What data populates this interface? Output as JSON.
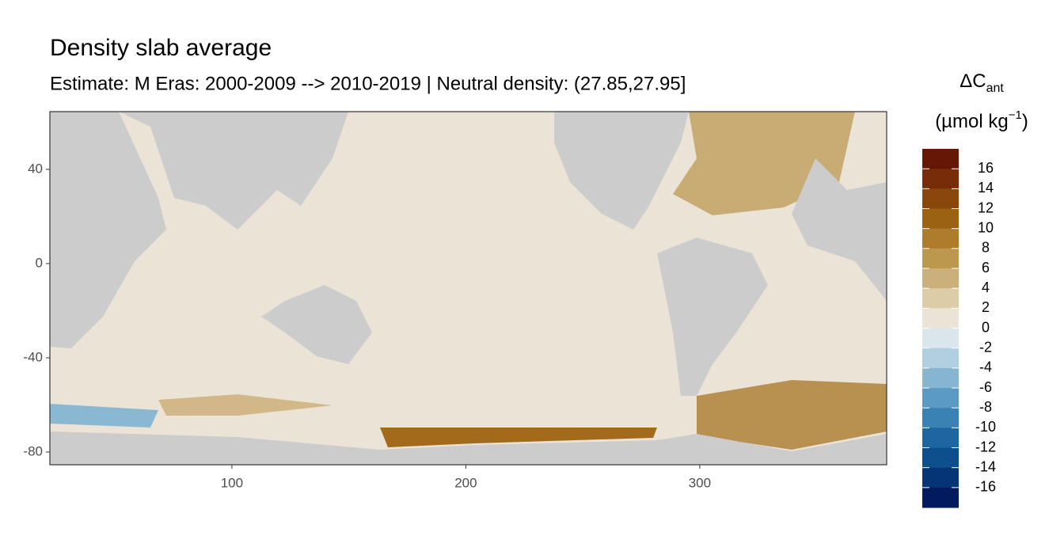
{
  "chart_data": {
    "type": "raster-map",
    "title": "Density slab average",
    "subtitle": "Estimate: M Eras: 2000-2009 --> 2010-2019 | Neutral density: (27.85,27.95]",
    "xlim": [
      22.2,
      379.9
    ],
    "xticks": [
      100,
      200,
      300
    ],
    "ylim": [
      -85.4,
      64.5
    ],
    "yticks": [
      40,
      0,
      -40,
      -80
    ],
    "grid": false,
    "legend": {
      "title": "ΔC",
      "title_sub": "ant",
      "unit": "(µmol kg",
      "unit_sup": "−1",
      "unit_end": ")",
      "lim": [
        18,
        -18
      ],
      "breaks": [
        16,
        14,
        12,
        10,
        8,
        6,
        4,
        2,
        0,
        -2,
        -4,
        -6,
        -8,
        -10,
        -12,
        -14,
        -16
      ],
      "colors": [
        "#651905",
        "#772d07",
        "#8a470b",
        "#9c6214",
        "#ad7d2c",
        "#bc984f",
        "#cbb07c",
        "#dccca8",
        "#ebe4d6",
        "#dbe6ec",
        "#b2cfe0",
        "#86b5d2",
        "#5b9bc3",
        "#3982b3",
        "#1d66a1",
        "#0d4e8c",
        "#053576",
        "#021b5e"
      ]
    }
  }
}
